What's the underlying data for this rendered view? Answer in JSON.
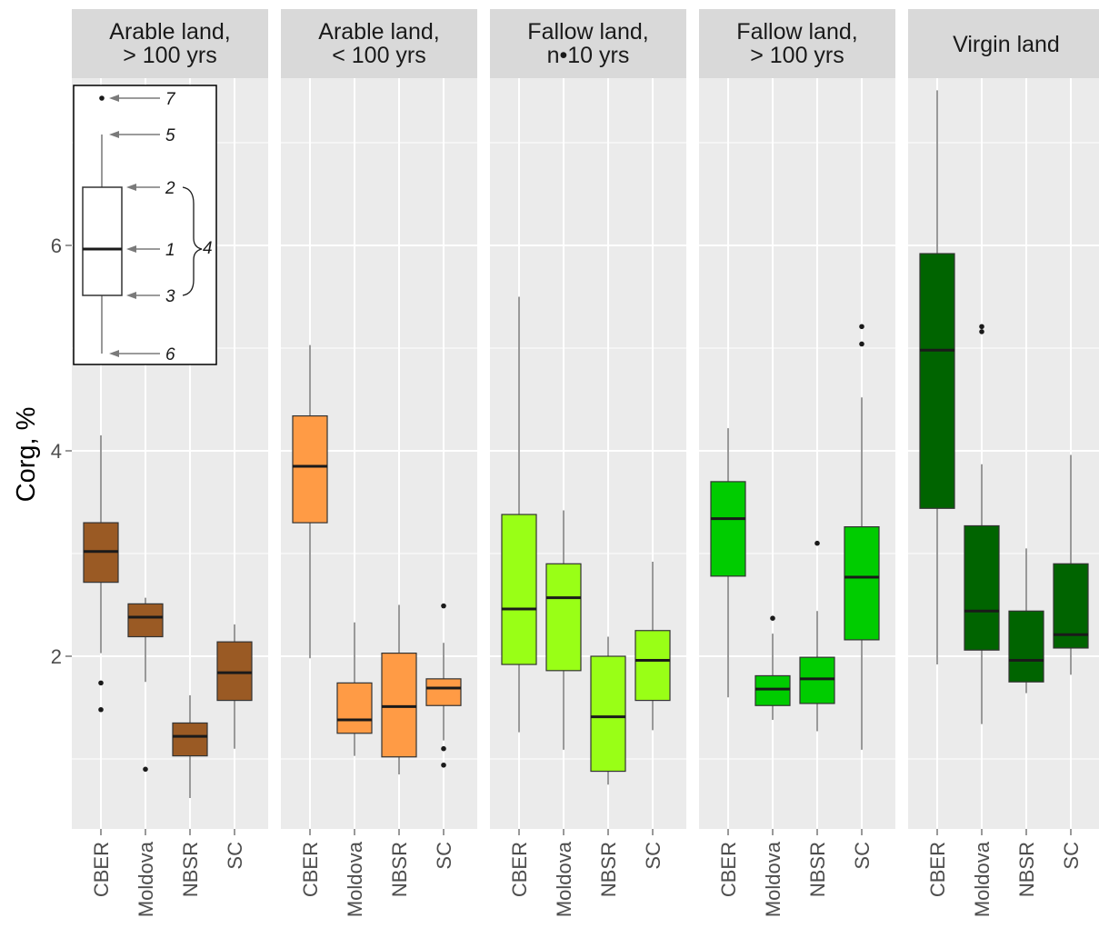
{
  "chart_data": {
    "type": "boxplot",
    "ylabel": "Corg, %",
    "xlabel": "",
    "ylim": [
      0.2,
      7.6
    ],
    "yticks": [
      2,
      4,
      6
    ],
    "ytick_labels": [
      "2",
      "4",
      "6"
    ],
    "categories": [
      "CBER",
      "Moldova",
      "NBSR",
      "SC"
    ],
    "grid": true,
    "panels": [
      {
        "title": [
          "Arable land,",
          "> 100 yrs"
        ],
        "color": "#9a5a24",
        "boxes": [
          {
            "category": "CBER",
            "min": 2.03,
            "q1": 2.72,
            "median": 3.02,
            "q3": 3.3,
            "max": 4.15,
            "outliers": [
              1.74,
              1.48
            ]
          },
          {
            "category": "Moldova",
            "min": 1.75,
            "q1": 2.19,
            "median": 2.38,
            "q3": 2.51,
            "max": 2.57,
            "outliers": [
              0.9
            ]
          },
          {
            "category": "NBSR",
            "min": 0.62,
            "q1": 1.03,
            "median": 1.22,
            "q3": 1.35,
            "max": 1.62,
            "outliers": []
          },
          {
            "category": "SC",
            "min": 1.1,
            "q1": 1.57,
            "median": 1.84,
            "q3": 2.14,
            "max": 2.31,
            "outliers": []
          }
        ]
      },
      {
        "title": [
          "Arable land,",
          "< 100 yrs"
        ],
        "color": "#ff9b45",
        "boxes": [
          {
            "category": "CBER",
            "min": 1.98,
            "q1": 3.3,
            "median": 3.85,
            "q3": 4.34,
            "max": 5.03,
            "outliers": []
          },
          {
            "category": "Moldova",
            "min": 1.03,
            "q1": 1.25,
            "median": 1.38,
            "q3": 1.74,
            "max": 2.33,
            "outliers": []
          },
          {
            "category": "NBSR",
            "min": 0.85,
            "q1": 1.02,
            "median": 1.51,
            "q3": 2.03,
            "max": 2.5,
            "outliers": []
          },
          {
            "category": "SC",
            "min": 1.18,
            "q1": 1.52,
            "median": 1.69,
            "q3": 1.78,
            "max": 2.13,
            "outliers": [
              2.49,
              1.1,
              0.94
            ]
          }
        ]
      },
      {
        "title": [
          "Fallow land,",
          "n•10 yrs"
        ],
        "color": "#99ff16",
        "boxes": [
          {
            "category": "CBER",
            "min": 1.26,
            "q1": 1.92,
            "median": 2.46,
            "q3": 3.38,
            "max": 5.5,
            "outliers": []
          },
          {
            "category": "Moldova",
            "min": 1.09,
            "q1": 1.86,
            "median": 2.57,
            "q3": 2.9,
            "max": 3.42,
            "outliers": []
          },
          {
            "category": "NBSR",
            "min": 0.75,
            "q1": 0.88,
            "median": 1.41,
            "q3": 2.0,
            "max": 2.19,
            "outliers": []
          },
          {
            "category": "SC",
            "min": 1.28,
            "q1": 1.57,
            "median": 1.96,
            "q3": 2.25,
            "max": 2.92,
            "outliers": []
          }
        ]
      },
      {
        "title": [
          "Fallow land,",
          "> 100 yrs"
        ],
        "color": "#00cc00",
        "boxes": [
          {
            "category": "CBER",
            "min": 1.6,
            "q1": 2.78,
            "median": 3.34,
            "q3": 3.7,
            "max": 4.22,
            "outliers": []
          },
          {
            "category": "Moldova",
            "min": 1.38,
            "q1": 1.52,
            "median": 1.68,
            "q3": 1.81,
            "max": 2.22,
            "outliers": [
              2.37
            ]
          },
          {
            "category": "NBSR",
            "min": 1.27,
            "q1": 1.54,
            "median": 1.78,
            "q3": 1.99,
            "max": 2.44,
            "outliers": [
              3.1
            ]
          },
          {
            "category": "SC",
            "min": 1.09,
            "q1": 2.16,
            "median": 2.77,
            "q3": 3.26,
            "max": 4.52,
            "outliers": [
              5.21,
              5.04
            ]
          }
        ]
      },
      {
        "title": [
          "Virgin land"
        ],
        "color": "#006400",
        "boxes": [
          {
            "category": "CBER",
            "min": 1.92,
            "q1": 3.44,
            "median": 4.98,
            "q3": 5.92,
            "max": 7.51,
            "outliers": []
          },
          {
            "category": "Moldova",
            "min": 1.34,
            "q1": 2.06,
            "median": 2.44,
            "q3": 3.27,
            "max": 3.87,
            "outliers": [
              5.21,
              5.16
            ]
          },
          {
            "category": "NBSR",
            "min": 1.64,
            "q1": 1.75,
            "median": 1.96,
            "q3": 2.44,
            "max": 3.05,
            "outliers": []
          },
          {
            "category": "SC",
            "min": 1.82,
            "q1": 2.08,
            "median": 2.21,
            "q3": 2.9,
            "max": 3.96,
            "outliers": []
          }
        ]
      }
    ],
    "legend_key": {
      "placement": "top-left",
      "color": "#ffffff",
      "labels": [
        "7",
        "5",
        "2",
        "1",
        "3",
        "6",
        "4"
      ]
    }
  }
}
